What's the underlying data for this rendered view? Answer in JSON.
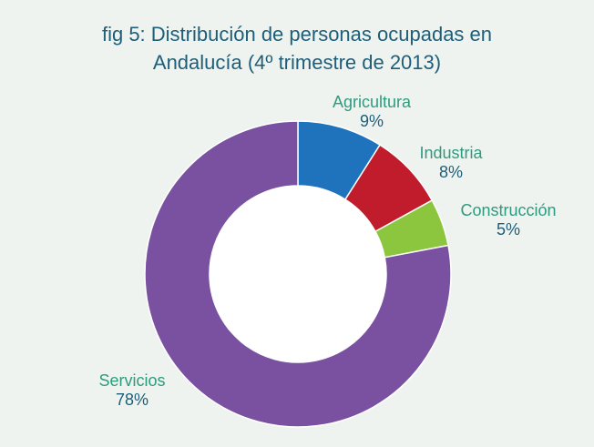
{
  "chart_data": {
    "type": "pie",
    "title_line1": "fig 5: Distribución de personas ocupadas en",
    "title_line2": "Andalucía (4º trimestre de 2013)",
    "slices": [
      {
        "label": "Agricultura",
        "value": 9,
        "value_label": "9%",
        "color": "#1f73bd"
      },
      {
        "label": "Industria",
        "value": 8,
        "value_label": "8%",
        "color": "#c01c2c"
      },
      {
        "label": "Construcción",
        "value": 5,
        "value_label": "5%",
        "color": "#8cc63e"
      },
      {
        "label": "Servicios",
        "value": 78,
        "value_label": "78%",
        "color": "#7a50a0"
      }
    ],
    "donut": true
  }
}
